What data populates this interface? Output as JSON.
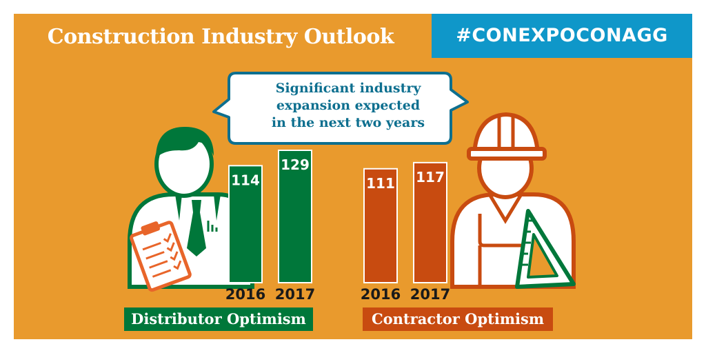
{
  "header": {
    "title": "Construction Industry Outlook",
    "hashtag": "#CONEXPOCONAGG"
  },
  "callout": {
    "lines": [
      "Significant industry",
      "expansion expected",
      "in the next two years"
    ]
  },
  "icons": {
    "left": "distributor-person-icon",
    "left_prop": "clipboard-icon",
    "right": "contractor-hardhat-icon",
    "right_prop": "set-square-icon"
  },
  "colors": {
    "background": "#e99a2d",
    "distributor": "#00773a",
    "contractor": "#c84b10",
    "hashtag_bg": "#0f97c9",
    "callout_text": "#0d6f8f"
  },
  "chart_data": {
    "type": "bar",
    "title": "Construction Industry Outlook",
    "categories": [
      "2016",
      "2017"
    ],
    "series": [
      {
        "name": "Distributor Optimism",
        "values": [
          114,
          129
        ],
        "color": "#00773a"
      },
      {
        "name": "Contractor Optimism",
        "values": [
          111,
          117
        ],
        "color": "#c84b10"
      }
    ],
    "ylim": [
      0,
      129
    ],
    "grid": false,
    "legend": "none"
  }
}
